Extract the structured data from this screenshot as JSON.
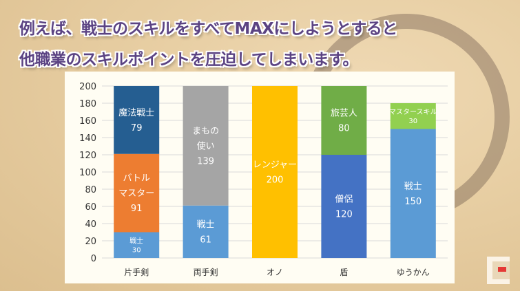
{
  "title_lines": [
    "例えば、戦士のスキルをすべてMAXにしようとすると",
    "他職業のスキルポイントを圧迫してしまいます。"
  ],
  "chart_data": {
    "type": "bar",
    "stacked": true,
    "categories": [
      "片手剣",
      "両手剣",
      "オノ",
      "盾",
      "ゆうかん"
    ],
    "ylim": [
      0,
      200
    ],
    "yticks": [
      0,
      20,
      40,
      60,
      80,
      100,
      120,
      140,
      160,
      180,
      200
    ],
    "grid": true,
    "stacks": [
      [
        {
          "name": "戦士",
          "value": 30,
          "color": "#5b9bd5"
        },
        {
          "name": "バトル\nマスター",
          "value": 91,
          "color": "#ed7d31"
        },
        {
          "name": "魔法戦士",
          "value": 79,
          "color": "#255e91"
        }
      ],
      [
        {
          "name": "戦士",
          "value": 61,
          "color": "#5b9bd5"
        },
        {
          "name": "まもの\n使い",
          "value": 139,
          "color": "#a5a5a5"
        }
      ],
      [
        {
          "name": "レンジャー",
          "value": 200,
          "color": "#ffc000"
        }
      ],
      [
        {
          "name": "僧侶",
          "value": 120,
          "color": "#4472c4"
        },
        {
          "name": "旅芸人",
          "value": 80,
          "color": "#70ad47"
        }
      ],
      [
        {
          "name": "戦士",
          "value": 150,
          "color": "#5b9bd5"
        },
        {
          "name": "マスタースキル",
          "value": 30,
          "color": "#92d050"
        }
      ]
    ]
  }
}
